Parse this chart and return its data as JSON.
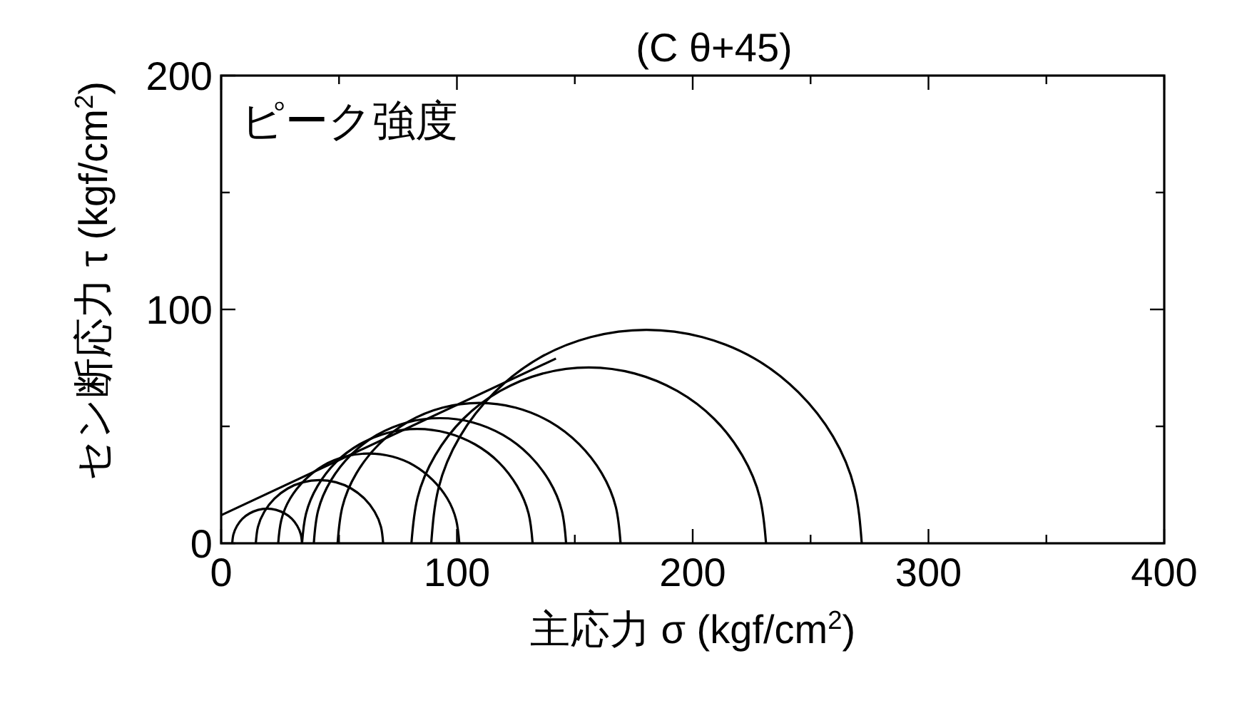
{
  "chart_data": {
    "type": "line",
    "title": "(C θ+45)",
    "xlabel": "主応力 σ (kgf/cm$^{2}$)",
    "ylabel": "セン断応力 τ (kgf/cm$^{2}$)",
    "annotations": [
      "ピーク強度"
    ],
    "xlim": [
      0,
      400
    ],
    "ylim": [
      0,
      200
    ],
    "xticks": [
      0,
      {
        "value": 50,
        "label": null
      },
      100,
      {
        "value": 150,
        "label": null
      },
      200,
      {
        "value": 250,
        "label": null
      },
      300,
      {
        "value": 350,
        "label": null
      },
      400
    ],
    "yticks": [
      0,
      {
        "value": 50,
        "label": null
      },
      100,
      {
        "value": 150,
        "label": null
      },
      200
    ],
    "series": [
      {
        "color": "#000000",
        "x": [
          4.7,
          5.2,
          6.7,
          9.0,
          12.1,
          15.7,
          19.5,
          23.3,
          26.9,
          30.0,
          32.3,
          33.8,
          34.3
        ],
        "values": [
          0,
          3.8,
          7.4,
          10.5,
          12.8,
          14.3,
          14.8,
          14.3,
          12.8,
          10.5,
          7.4,
          3.8,
          0
        ]
      },
      {
        "color": "#000000",
        "x": [
          14.7,
          15.6,
          18.3,
          22.6,
          28.2,
          34.7,
          41.7,
          48.7,
          55.2,
          60.8,
          65.1,
          67.8,
          68.7
        ],
        "values": [
          0,
          7.0,
          13.5,
          19.1,
          23.4,
          26.1,
          27.0,
          26.1,
          23.4,
          19.1,
          13.5,
          7.0,
          0
        ]
      },
      {
        "color": "#000000",
        "x": [
          24.2,
          25.5,
          29.3,
          35.5,
          43.4,
          52.7,
          62.6,
          72.5,
          81.8,
          89.7,
          95.9,
          99.7,
          101.0
        ],
        "values": [
          0,
          9.9,
          19.2,
          27.1,
          33.3,
          37.1,
          38.4,
          37.1,
          33.3,
          27.1,
          19.2,
          9.9,
          0
        ]
      },
      {
        "color": "#000000",
        "x": [
          34.3,
          36.0,
          40.9,
          48.6,
          58.7,
          70.5,
          83.2,
          95.9,
          107.7,
          117.8,
          125.5,
          130.4,
          132.1
        ],
        "values": [
          0,
          12.7,
          24.5,
          34.6,
          42.3,
          47.2,
          48.9,
          47.2,
          42.3,
          34.6,
          24.5,
          12.7,
          0
        ]
      },
      {
        "color": "#000000",
        "x": [
          39.3,
          41.1,
          46.5,
          55.0,
          66.0,
          78.9,
          92.8,
          106.7,
          119.6,
          130.6,
          139.1,
          144.5,
          146.3
        ],
        "values": [
          0,
          13.9,
          26.8,
          37.8,
          46.3,
          51.7,
          53.5,
          51.7,
          46.3,
          37.8,
          26.8,
          13.9,
          0
        ]
      },
      {
        "color": "#000000",
        "x": [
          49.4,
          51.4,
          57.4,
          67.0,
          79.4,
          93.9,
          109.4,
          124.9,
          139.4,
          151.8,
          161.4,
          167.4,
          169.4
        ],
        "values": [
          0,
          15.5,
          30.0,
          42.4,
          52.0,
          58.0,
          60.0,
          58.0,
          52.0,
          42.4,
          30.0,
          15.5,
          0
        ]
      },
      {
        "color": "#000000",
        "x": [
          80.7,
          83.3,
          90.8,
          102.7,
          118.3,
          136.4,
          155.9,
          175.4,
          193.5,
          209.1,
          221.0,
          228.5,
          231.1
        ],
        "values": [
          0,
          19.5,
          37.6,
          53.2,
          65.1,
          72.6,
          75.2,
          72.6,
          65.1,
          53.2,
          37.6,
          19.5,
          0
        ]
      },
      {
        "color": "#000000",
        "x": [
          89.1,
          92.2,
          101.3,
          115.9,
          134.7,
          156.8,
          180.4,
          204.0,
          226.1,
          244.9,
          259.5,
          268.6,
          271.7
        ],
        "values": [
          0,
          23.6,
          45.7,
          64.5,
          79.1,
          88.2,
          91.3,
          88.2,
          79.1,
          64.5,
          45.7,
          23.6,
          0
        ]
      },
      {
        "color": "#000000",
        "x": [
          0,
          142
        ],
        "values": [
          12,
          79
        ]
      }
    ]
  }
}
